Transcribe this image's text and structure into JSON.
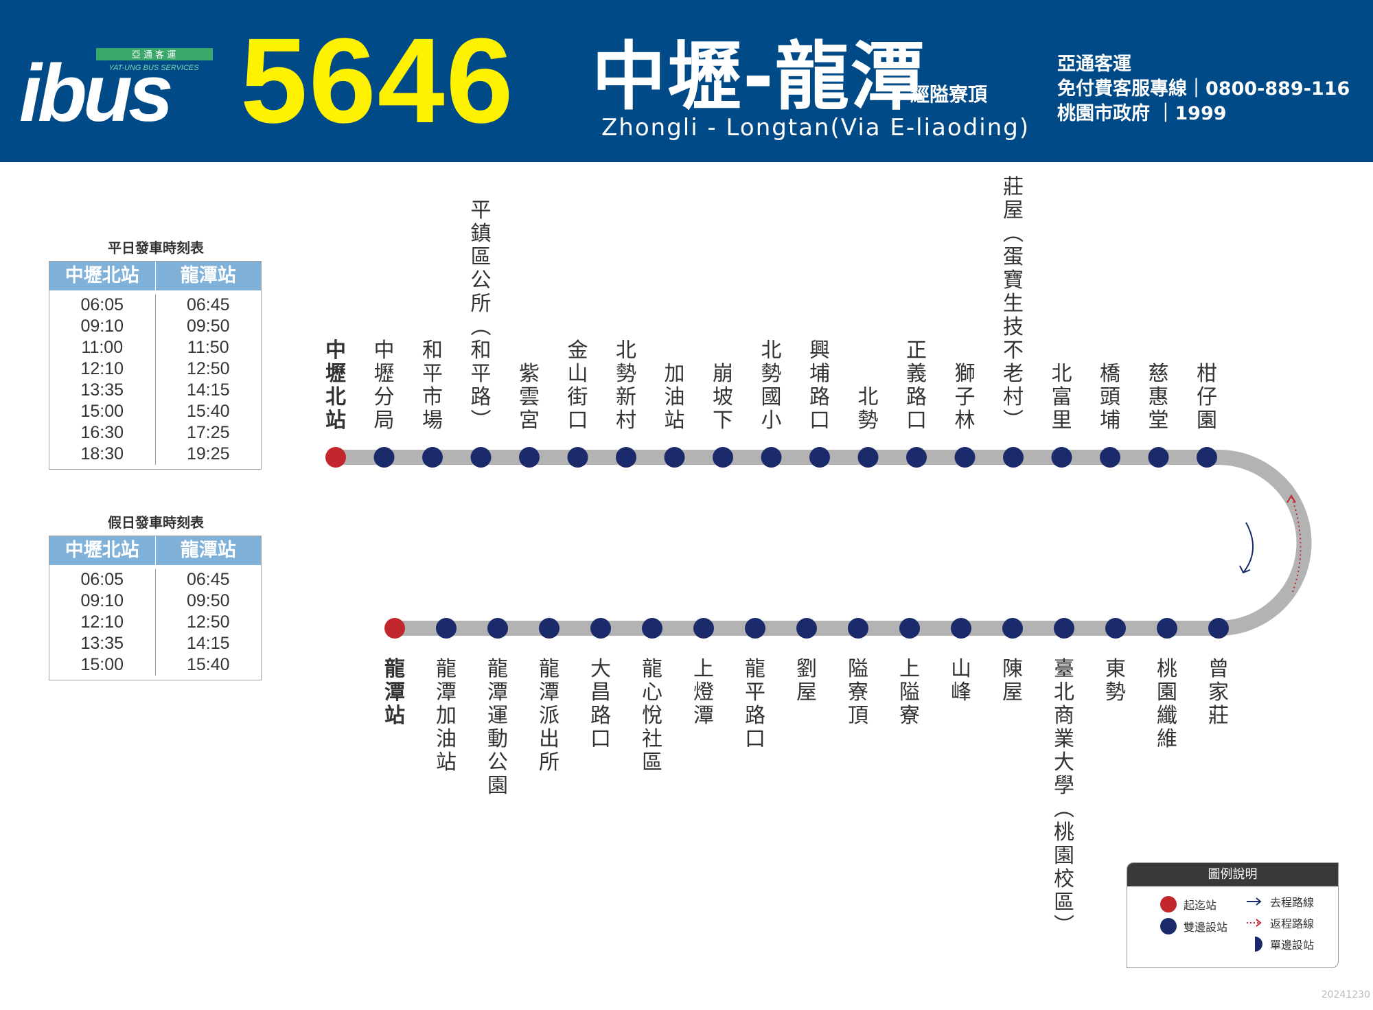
{
  "header": {
    "logo_text": "ibus",
    "logo_chinese": "亞 通 客 運",
    "logo_english": "YAT-UNG BUS SERVICES",
    "route_number": "5646",
    "route_name": "中壢-龍潭",
    "route_via": "經隘寮頂",
    "route_english": "Zhongli - Longtan(Via E-liaoding)",
    "contact_lines": [
      "亞通客運",
      "免付費客服專線｜0800-889-116",
      "桃園市政府 ｜1999"
    ]
  },
  "weekday_timetable": {
    "title": "平日發車時刻表",
    "headers": [
      "中壢北站",
      "龍潭站"
    ],
    "from_zhongli": [
      "06:05",
      "09:10",
      "11:00",
      "12:10",
      "13:35",
      "15:00",
      "16:30",
      "18:30"
    ],
    "from_longtan": [
      "06:45",
      "09:50",
      "11:50",
      "12:50",
      "14:15",
      "15:40",
      "17:25",
      "19:25"
    ]
  },
  "holiday_timetable": {
    "title": "假日發車時刻表",
    "headers": [
      "中壢北站",
      "龍潭站"
    ],
    "from_zhongli": [
      "06:05",
      "09:10",
      "12:10",
      "13:35",
      "15:00"
    ],
    "from_longtan": [
      "06:45",
      "09:50",
      "12:50",
      "14:15",
      "15:40"
    ]
  },
  "route": {
    "colors": {
      "line": "#b3b3b3",
      "terminal": "#c1272d",
      "stop": "#1b2a6b",
      "header_bg": "#004a87",
      "route_number": "#fff200"
    },
    "top_stops": [
      {
        "name": "中壢北站",
        "type": "terminal"
      },
      {
        "name": "中壢分局",
        "type": "both"
      },
      {
        "name": "和平市場",
        "type": "both"
      },
      {
        "name": "平鎮區公所（和平路）",
        "type": "both"
      },
      {
        "name": "紫雲宮",
        "type": "both"
      },
      {
        "name": "金山街口",
        "type": "both"
      },
      {
        "name": "北勢新村",
        "type": "both"
      },
      {
        "name": "加油站",
        "type": "both"
      },
      {
        "name": "崩坡下",
        "type": "both"
      },
      {
        "name": "北勢國小",
        "type": "both"
      },
      {
        "name": "興埔路口",
        "type": "both"
      },
      {
        "name": "北勢",
        "type": "both"
      },
      {
        "name": "正義路口",
        "type": "both"
      },
      {
        "name": "獅子林",
        "type": "both"
      },
      {
        "name": "莊屋（蛋寶生技不老村）",
        "type": "both"
      },
      {
        "name": "北富里",
        "type": "both"
      },
      {
        "name": "橋頭埔",
        "type": "both"
      },
      {
        "name": "慈惠堂",
        "type": "both"
      },
      {
        "name": "柑仔園",
        "type": "both"
      }
    ],
    "bottom_stops": [
      {
        "name": "龍潭站",
        "type": "terminal"
      },
      {
        "name": "龍潭加油站",
        "type": "both"
      },
      {
        "name": "龍潭運動公園",
        "type": "both"
      },
      {
        "name": "龍潭派出所",
        "type": "both"
      },
      {
        "name": "大昌路口",
        "type": "both"
      },
      {
        "name": "龍心悅社區",
        "type": "both"
      },
      {
        "name": "上燈潭",
        "type": "both"
      },
      {
        "name": "龍平路口",
        "type": "both"
      },
      {
        "name": "劉屋",
        "type": "both"
      },
      {
        "name": "隘寮頂",
        "type": "both"
      },
      {
        "name": "上隘寮",
        "type": "both"
      },
      {
        "name": "山峰",
        "type": "both"
      },
      {
        "name": "陳屋",
        "type": "both"
      },
      {
        "name": "臺北商業大學（桃園校區）",
        "type": "both"
      },
      {
        "name": "東勢",
        "type": "both"
      },
      {
        "name": "桃園纖維",
        "type": "both"
      },
      {
        "name": "曾家莊",
        "type": "both"
      }
    ]
  },
  "legend": {
    "title": "圖例說明",
    "terminal": "起迄站",
    "both_sides": "雙邊設站",
    "outbound": "去程路線",
    "inbound": "返程路線",
    "one_side": "單邊設站"
  },
  "date_code": "20241230"
}
